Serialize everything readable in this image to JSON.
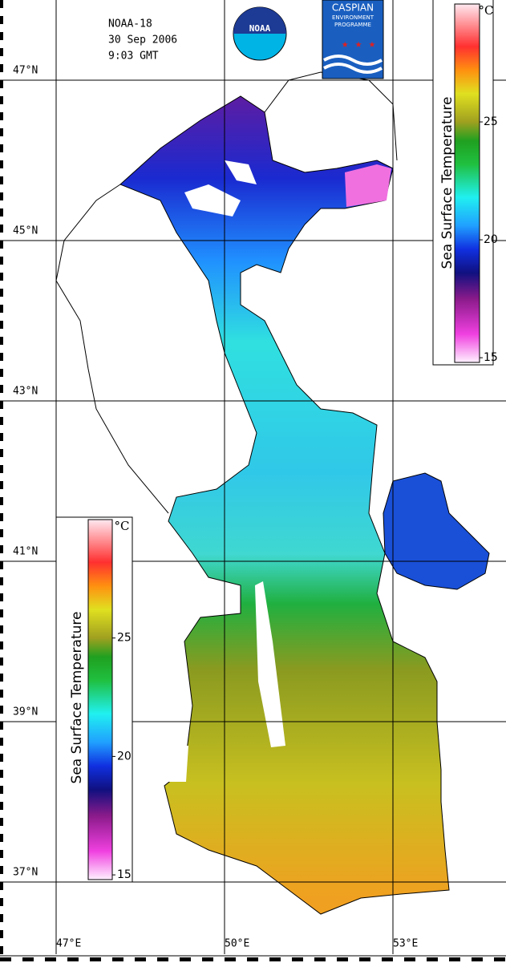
{
  "header": {
    "satellite": "NOAA-18",
    "date": "30 Sep 2006",
    "time": "9:03 GMT"
  },
  "logos": {
    "noaa": "NOAA",
    "cep": [
      "CASPIAN",
      "ENVIRONMENT",
      "PROGRAMME"
    ]
  },
  "map": {
    "latitude_labels": [
      "47°N",
      "45°N",
      "43°N",
      "41°N",
      "39°N",
      "37°N"
    ],
    "longitude_labels": [
      "47°E",
      "50°E",
      "53°E"
    ]
  },
  "colormap": [
    [
      14.8,
      "#fff0ff"
    ],
    [
      16,
      "#f040e0"
    ],
    [
      17.5,
      "#8a1a8a"
    ],
    [
      18.6,
      "#101080"
    ],
    [
      19.6,
      "#1030e0"
    ],
    [
      20.6,
      "#20a0ff"
    ],
    [
      21.8,
      "#20f0f0"
    ],
    [
      23.2,
      "#20c040"
    ],
    [
      24.2,
      "#20a020"
    ],
    [
      25,
      "#a0a020"
    ],
    [
      26.2,
      "#e0e020"
    ],
    [
      27.2,
      "#ff9010"
    ],
    [
      28.2,
      "#ff3030"
    ],
    [
      30,
      "#ffe8f0"
    ]
  ],
  "colorbars": [
    {
      "title": "Sea Surface Temperature",
      "unit": "°C",
      "range": [
        14.8,
        30
      ],
      "ticks": [
        15,
        20,
        25
      ]
    },
    {
      "title": "Sea Surface Temperature",
      "unit": "°C",
      "range": [
        14.8,
        30
      ],
      "ticks": [
        15,
        20,
        25
      ]
    }
  ]
}
